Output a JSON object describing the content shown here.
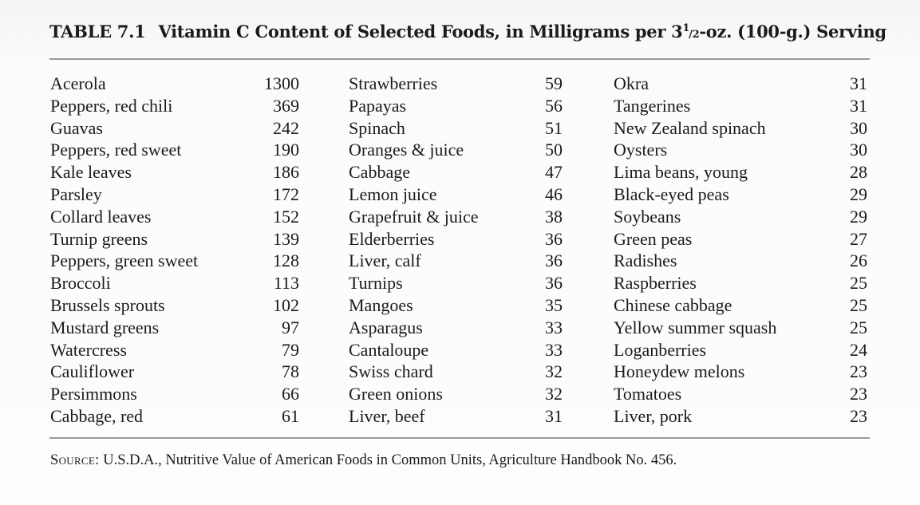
{
  "title": {
    "label": "TABLE 7.1",
    "text_before_fraction": "Vitamin C Content of Selected Foods, in Milligrams per 3",
    "fraction_numerator": "1",
    "fraction_denominator": "/2",
    "text_after_fraction": "-oz. (100-g.) Serving"
  },
  "columns": [
    {
      "rows": [
        {
          "food": "Acerola",
          "value": "1300"
        },
        {
          "food": "Peppers, red chili",
          "value": "369"
        },
        {
          "food": "Guavas",
          "value": "242"
        },
        {
          "food": "Peppers, red sweet",
          "value": "190"
        },
        {
          "food": "Kale leaves",
          "value": "186"
        },
        {
          "food": "Parsley",
          "value": "172"
        },
        {
          "food": "Collard leaves",
          "value": "152"
        },
        {
          "food": "Turnip greens",
          "value": "139"
        },
        {
          "food": "Peppers, green sweet",
          "value": "128"
        },
        {
          "food": "Broccoli",
          "value": "113"
        },
        {
          "food": "Brussels sprouts",
          "value": "102"
        },
        {
          "food": "Mustard greens",
          "value": "97"
        },
        {
          "food": "Watercress",
          "value": "79"
        },
        {
          "food": "Cauliflower",
          "value": "78"
        },
        {
          "food": "Persimmons",
          "value": "66"
        },
        {
          "food": "Cabbage, red",
          "value": "61"
        }
      ]
    },
    {
      "rows": [
        {
          "food": "Strawberries",
          "value": "59"
        },
        {
          "food": "Papayas",
          "value": "56"
        },
        {
          "food": "Spinach",
          "value": "51"
        },
        {
          "food": "Oranges & juice",
          "value": "50"
        },
        {
          "food": "Cabbage",
          "value": "47"
        },
        {
          "food": "Lemon juice",
          "value": "46"
        },
        {
          "food": "Grapefruit & juice",
          "value": "38"
        },
        {
          "food": "Elderberries",
          "value": "36"
        },
        {
          "food": "Liver, calf",
          "value": "36"
        },
        {
          "food": "Turnips",
          "value": "36"
        },
        {
          "food": "Mangoes",
          "value": "35"
        },
        {
          "food": "Asparagus",
          "value": "33"
        },
        {
          "food": "Cantaloupe",
          "value": "33"
        },
        {
          "food": "Swiss chard",
          "value": "32"
        },
        {
          "food": "Green onions",
          "value": "32"
        },
        {
          "food": "Liver, beef",
          "value": "31"
        }
      ]
    },
    {
      "rows": [
        {
          "food": "Okra",
          "value": "31"
        },
        {
          "food": "Tangerines",
          "value": "31"
        },
        {
          "food": "New Zealand spinach",
          "value": "30"
        },
        {
          "food": "Oysters",
          "value": "30"
        },
        {
          "food": "Lima beans, young",
          "value": "28"
        },
        {
          "food": "Black-eyed peas",
          "value": "29"
        },
        {
          "food": "Soybeans",
          "value": "29"
        },
        {
          "food": "Green peas",
          "value": "27"
        },
        {
          "food": "Radishes",
          "value": "26"
        },
        {
          "food": "Raspberries",
          "value": "25"
        },
        {
          "food": "Chinese cabbage",
          "value": "25"
        },
        {
          "food": "Yellow summer squash",
          "value": "25"
        },
        {
          "food": "Loganberries",
          "value": "24"
        },
        {
          "food": "Honeydew melons",
          "value": "23"
        },
        {
          "food": "Tomatoes",
          "value": "23"
        },
        {
          "food": "Liver, pork",
          "value": "23"
        }
      ]
    }
  ],
  "source": {
    "label": "Source:",
    "text": "U.S.D.A., Nutritive Value of American Foods in Common Units, Agriculture Handbook No. 456."
  }
}
